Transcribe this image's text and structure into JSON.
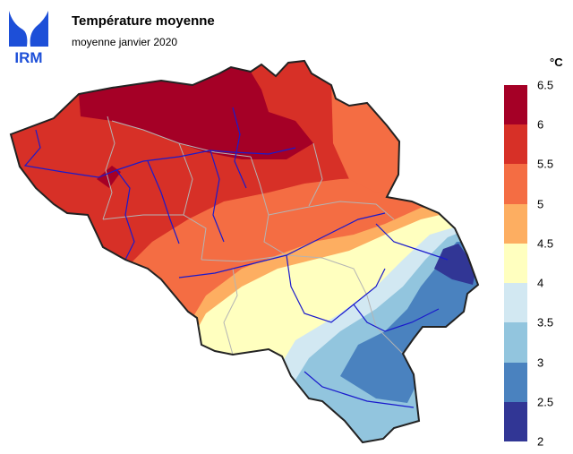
{
  "header": {
    "title": "Température moyenne",
    "subtitle": "moyenne janvier 2020",
    "logo_text": "IRM"
  },
  "legend": {
    "unit": "°C",
    "ticks": [
      "6.5",
      "6",
      "5.5",
      "5",
      "4.5",
      "4",
      "3.5",
      "3",
      "2.5",
      "2"
    ],
    "classes": [
      {
        "min": 6,
        "max": 6.5,
        "color": "#a50026"
      },
      {
        "min": 5.5,
        "max": 6,
        "color": "#d73027"
      },
      {
        "min": 5,
        "max": 5.5,
        "color": "#f46d43"
      },
      {
        "min": 4.5,
        "max": 5,
        "color": "#fdae61"
      },
      {
        "min": 4,
        "max": 4.5,
        "color": "#ffffbf"
      },
      {
        "min": 3.5,
        "max": 4,
        "color": "#d2e8f2"
      },
      {
        "min": 3,
        "max": 3.5,
        "color": "#92c5de"
      },
      {
        "min": 2.5,
        "max": 3,
        "color": "#4a82bf"
      },
      {
        "min": 2,
        "max": 2.5,
        "color": "#313695"
      }
    ]
  },
  "colors": {
    "logo_blue": "#1d4fd8",
    "rivers": "#1a1acc",
    "borders": "#b4b4b4",
    "outline": "#222222"
  }
}
